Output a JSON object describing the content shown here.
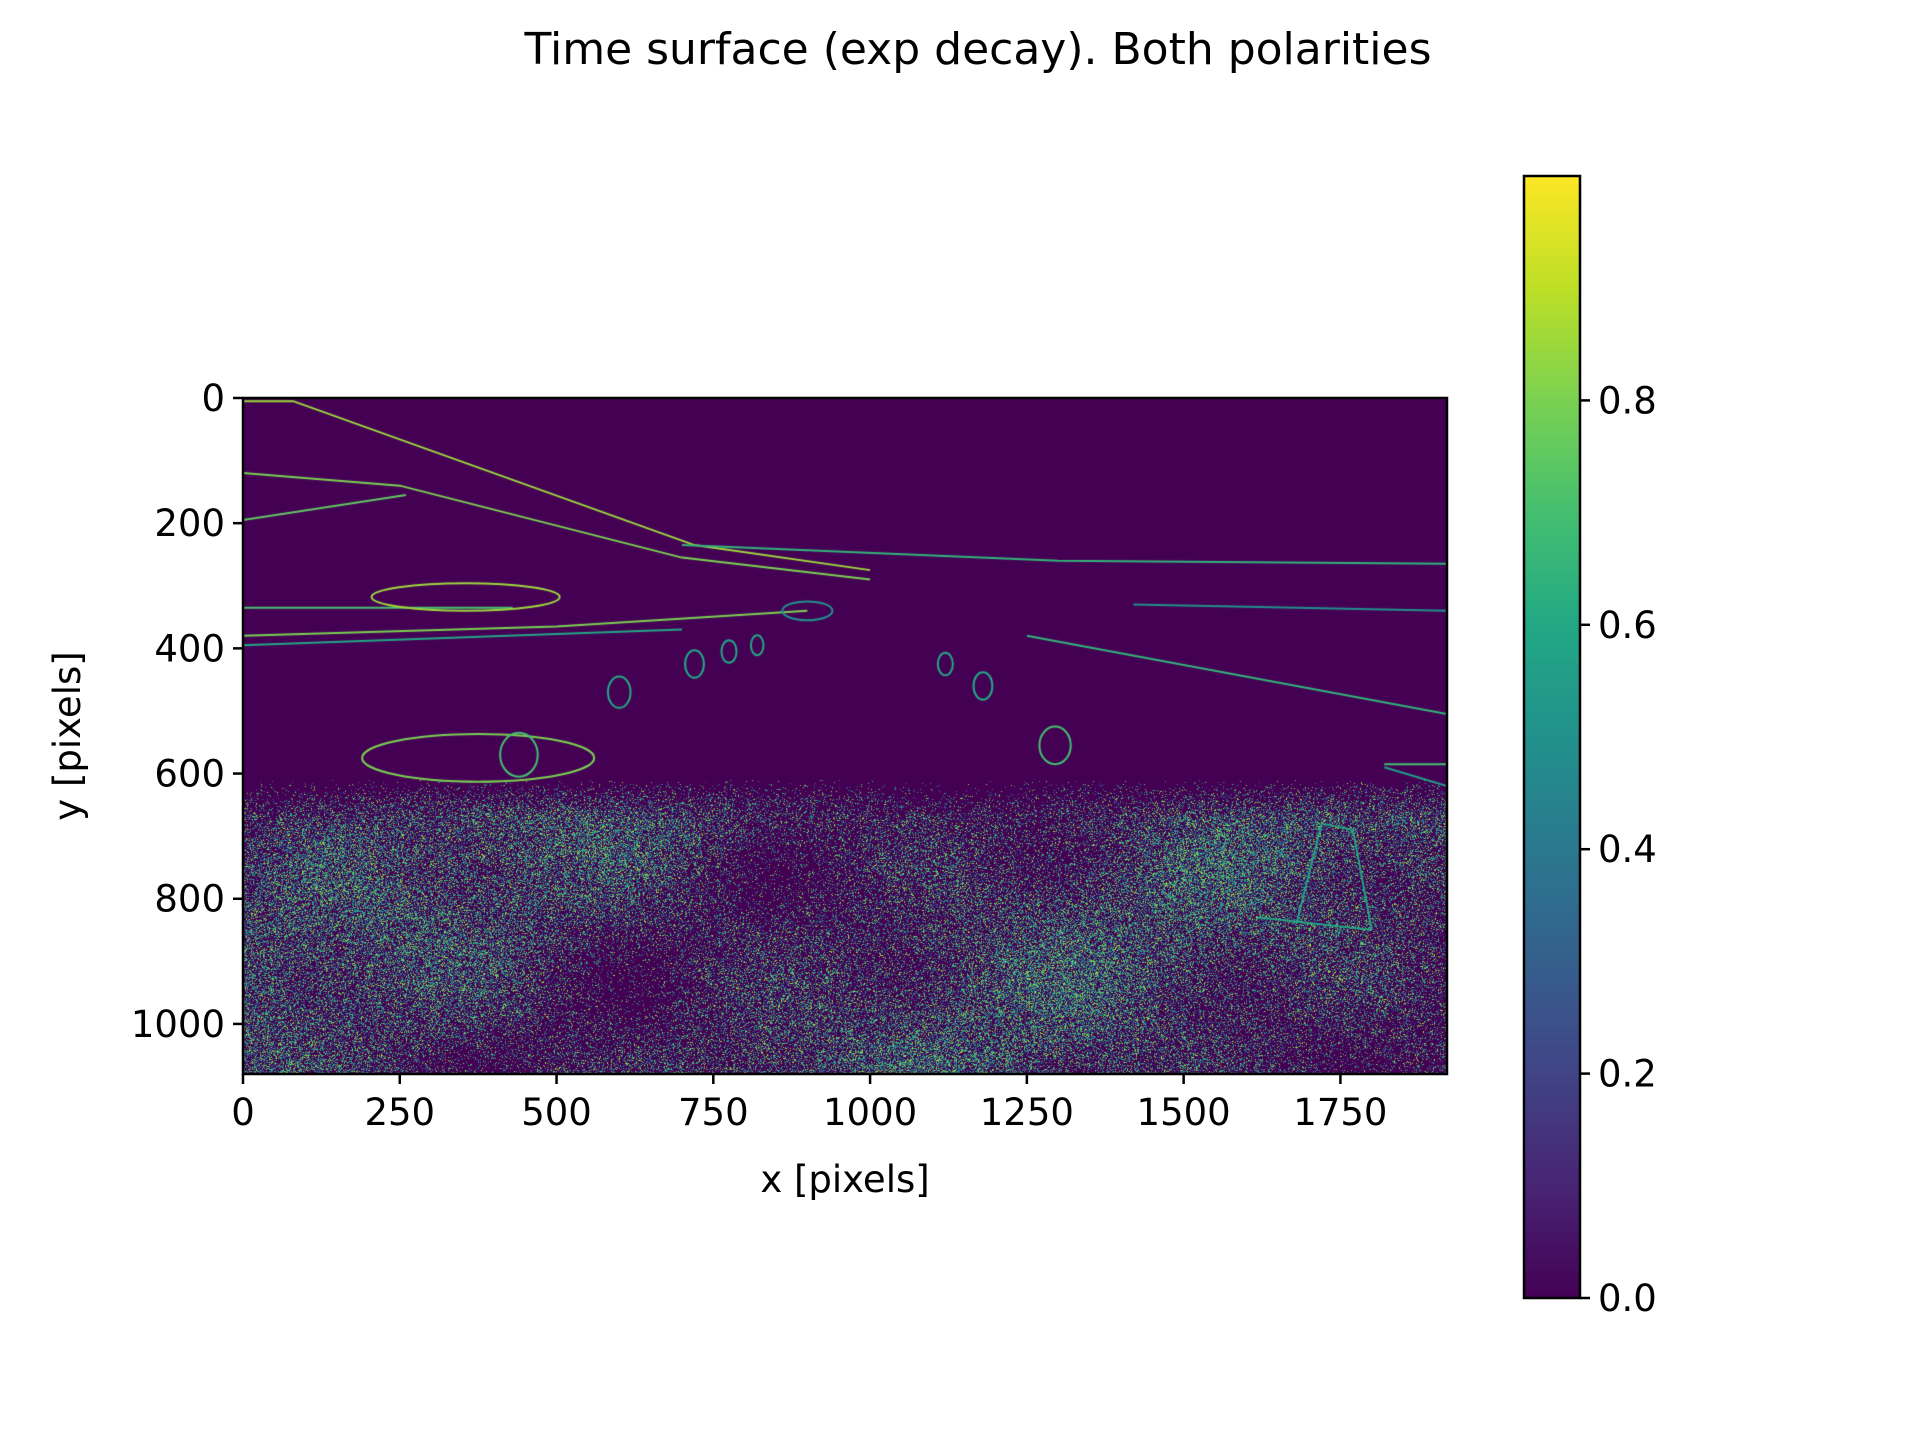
{
  "chart_data": {
    "type": "heatmap",
    "title": "Time surface (exp decay). Both polarities",
    "xlabel": "x [pixels]",
    "ylabel": "y [pixels]",
    "xlim": [
      0,
      1920
    ],
    "ylim": [
      1080,
      0
    ],
    "y_axis_inverted": true,
    "x_ticks": [
      0,
      250,
      500,
      750,
      1000,
      1250,
      1500,
      1750
    ],
    "x_tick_labels": [
      "0",
      "250",
      "500",
      "750",
      "1000",
      "1250",
      "1500",
      "1750"
    ],
    "y_ticks": [
      0,
      200,
      400,
      600,
      800,
      1000
    ],
    "y_tick_labels": [
      "0",
      "200",
      "400",
      "600",
      "800",
      "1000"
    ],
    "colormap": "viridis",
    "colorbar": {
      "range": [
        0.0,
        1.0
      ],
      "ticks": [
        0.0,
        0.2,
        0.4,
        0.6,
        0.8
      ],
      "tick_labels": [
        "0.0",
        "0.2",
        "0.4",
        "0.6",
        "0.8"
      ]
    },
    "background_value": 0.0,
    "grid": false,
    "edge_structures": [
      {
        "kind": "line",
        "value": 0.85,
        "points": [
          [
            0,
            5
          ],
          [
            80,
            5
          ],
          [
            720,
            235
          ],
          [
            1000,
            275
          ]
        ]
      },
      {
        "kind": "line",
        "value": 0.8,
        "points": [
          [
            0,
            120
          ],
          [
            250,
            140
          ],
          [
            700,
            255
          ],
          [
            1000,
            290
          ]
        ]
      },
      {
        "kind": "line",
        "value": 0.75,
        "points": [
          [
            0,
            195
          ],
          [
            260,
            155
          ]
        ]
      },
      {
        "kind": "line",
        "value": 0.7,
        "points": [
          [
            0,
            335
          ],
          [
            430,
            335
          ]
        ]
      },
      {
        "kind": "line",
        "value": 0.8,
        "points": [
          [
            0,
            380
          ],
          [
            500,
            365
          ],
          [
            900,
            340
          ]
        ]
      },
      {
        "kind": "line",
        "value": 0.6,
        "points": [
          [
            0,
            395
          ],
          [
            700,
            370
          ]
        ]
      },
      {
        "kind": "line",
        "value": 0.65,
        "points": [
          [
            700,
            235
          ],
          [
            1300,
            260
          ],
          [
            1920,
            265
          ]
        ]
      },
      {
        "kind": "line",
        "value": 0.65,
        "points": [
          [
            1250,
            380
          ],
          [
            1920,
            505
          ]
        ]
      },
      {
        "kind": "line",
        "value": 0.5,
        "points": [
          [
            1420,
            330
          ],
          [
            1920,
            340
          ]
        ]
      },
      {
        "kind": "line",
        "value": 0.7,
        "points": [
          [
            1820,
            585
          ],
          [
            1920,
            585
          ]
        ]
      },
      {
        "kind": "line",
        "value": 0.55,
        "points": [
          [
            1820,
            590
          ],
          [
            1920,
            620
          ]
        ]
      },
      {
        "kind": "line",
        "value": 0.6,
        "points": [
          [
            1620,
            830
          ],
          [
            1800,
            850
          ]
        ]
      },
      {
        "kind": "line",
        "value": 0.6,
        "points": [
          [
            1680,
            840
          ],
          [
            1720,
            680
          ],
          [
            1770,
            690
          ],
          [
            1800,
            850
          ]
        ]
      },
      {
        "kind": "ellipse",
        "value": 0.8,
        "center": [
          375,
          575
        ],
        "radii": [
          185,
          38
        ]
      },
      {
        "kind": "ellipse",
        "value": 0.7,
        "center": [
          440,
          570
        ],
        "radii": [
          30,
          35
        ]
      },
      {
        "kind": "ellipse",
        "value": 0.85,
        "center": [
          355,
          318
        ],
        "radii": [
          150,
          22
        ]
      },
      {
        "kind": "ellipse",
        "value": 0.6,
        "center": [
          600,
          470
        ],
        "radii": [
          18,
          25
        ]
      },
      {
        "kind": "ellipse",
        "value": 0.6,
        "center": [
          720,
          425
        ],
        "radii": [
          15,
          22
        ]
      },
      {
        "kind": "ellipse",
        "value": 0.6,
        "center": [
          775,
          405
        ],
        "radii": [
          12,
          18
        ]
      },
      {
        "kind": "ellipse",
        "value": 0.6,
        "center": [
          820,
          395
        ],
        "radii": [
          10,
          16
        ]
      },
      {
        "kind": "ellipse",
        "value": 0.6,
        "center": [
          1120,
          425
        ],
        "radii": [
          12,
          18
        ]
      },
      {
        "kind": "ellipse",
        "value": 0.6,
        "center": [
          1180,
          460
        ],
        "radii": [
          15,
          22
        ]
      },
      {
        "kind": "ellipse",
        "value": 0.7,
        "center": [
          1295,
          555
        ],
        "radii": [
          25,
          30
        ]
      },
      {
        "kind": "ellipse",
        "value": 0.5,
        "center": [
          900,
          340
        ],
        "radii": [
          40,
          15
        ]
      }
    ],
    "noise_region": {
      "y_start": 610,
      "y_end": 1080,
      "mean_value": 0.55,
      "density": 0.45
    }
  }
}
